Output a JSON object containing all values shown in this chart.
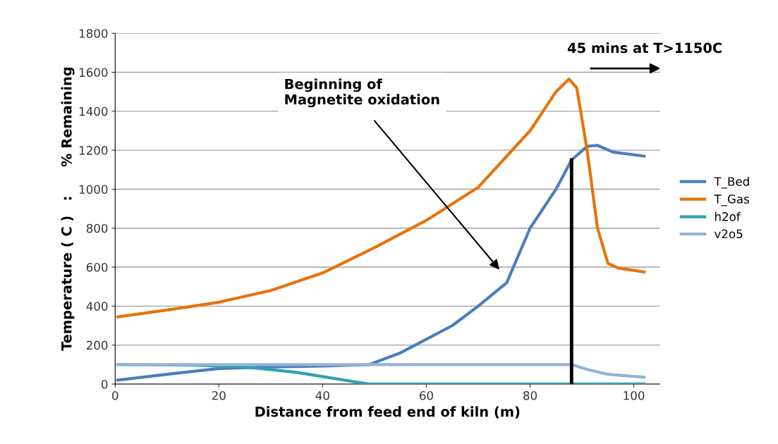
{
  "chart_data": {
    "type": "line",
    "xlabel": "Distance from feed end of kiln (m)",
    "ylabel": "Temperature ( C )   :      % Remaining",
    "xlim": [
      0,
      105
    ],
    "xticks": [
      0,
      20,
      40,
      60,
      80,
      100
    ],
    "ylim": [
      0,
      1800
    ],
    "yticks": [
      0,
      200,
      400,
      600,
      800,
      1000,
      1200,
      1400,
      1600,
      1800
    ],
    "grid": "y",
    "legend": "right",
    "marker": "none",
    "line_style": "solid",
    "series": [
      {
        "name": "T_Bed",
        "color": "#4a7ebb",
        "x": [
          0.5,
          10,
          20,
          30,
          40,
          49,
          55,
          60,
          65,
          70,
          75.5,
          80,
          85,
          88,
          91,
          93,
          96,
          102
        ],
        "values": [
          20,
          50,
          80,
          88,
          92,
          100,
          160,
          230,
          300,
          400,
          520,
          800,
          1000,
          1150,
          1220,
          1225,
          1190,
          1170
        ]
      },
      {
        "name": "T_Gas",
        "color": "#e8720c",
        "x": [
          0.5,
          10,
          20,
          30,
          40,
          50,
          60,
          70,
          80,
          85,
          87.5,
          89,
          91,
          93,
          95,
          97,
          102
        ],
        "values": [
          345,
          380,
          420,
          480,
          570,
          700,
          840,
          1010,
          1300,
          1500,
          1565,
          1520,
          1200,
          800,
          620,
          595,
          575
        ]
      },
      {
        "name": "h2of",
        "color": "#31a0b5",
        "x": [
          0.5,
          15,
          25,
          35,
          49,
          102
        ],
        "values": [
          100,
          97,
          88,
          60,
          0,
          0
        ]
      },
      {
        "name": "v2o5",
        "color": "#95b3d7",
        "x": [
          0.5,
          30,
          60,
          88,
          91,
          95,
          102
        ],
        "values": [
          100,
          100,
          100,
          100,
          75,
          50,
          35
        ]
      },
      {
        "color": "#000000",
        "x": [
          88,
          88
        ],
        "values": [
          0,
          1150
        ]
      }
    ],
    "annotations": [
      "Beginning of\nMagnetite oxidation",
      "45 mins at T>1150C"
    ]
  }
}
